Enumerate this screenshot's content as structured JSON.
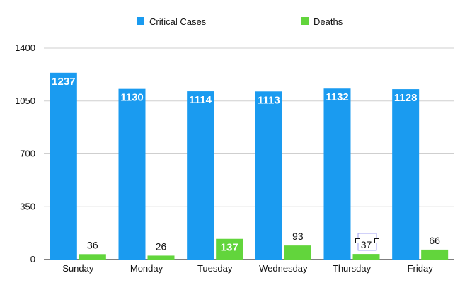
{
  "chart_data": {
    "type": "bar",
    "categories": [
      "Sunday",
      "Monday",
      "Tuesday",
      "Wednesday",
      "Thursday",
      "Friday"
    ],
    "series": [
      {
        "name": "Critical Cases",
        "color": "#1a9bf0",
        "values": [
          1237,
          1130,
          1114,
          1113,
          1132,
          1128
        ]
      },
      {
        "name": "Deaths",
        "color": "#62d53c",
        "values": [
          36,
          26,
          137,
          93,
          37,
          66
        ]
      }
    ],
    "ylim": [
      0,
      1400
    ],
    "yticks": [
      0,
      350,
      700,
      1050,
      1400
    ],
    "grid": true,
    "legend": "top"
  }
}
